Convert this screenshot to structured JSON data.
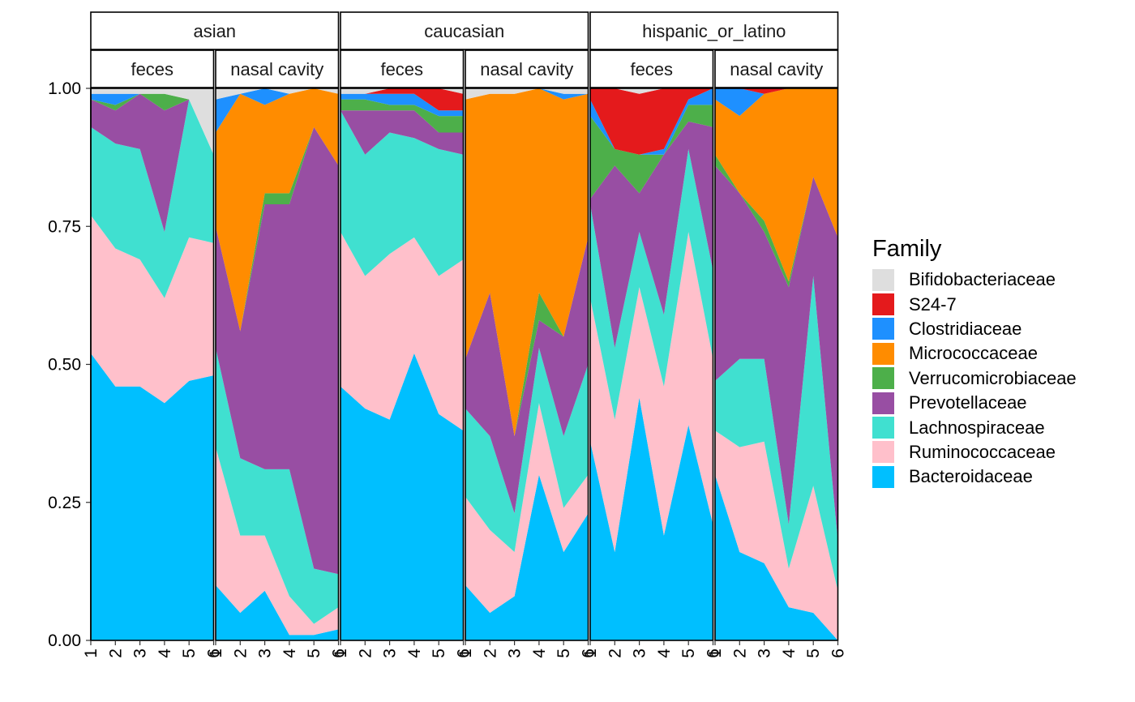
{
  "chart_data": {
    "type": "area",
    "subtype": "stacked-filled",
    "ylim": [
      0,
      1
    ],
    "y_ticks": [
      "0.00",
      "0.25",
      "0.50",
      "0.75",
      "1.00"
    ],
    "x_ticks": [
      "1",
      "2",
      "3",
      "4",
      "5",
      "6"
    ],
    "legend_title": "Family",
    "legend_position": "right",
    "families": [
      {
        "name": "Bifidobacteriaceae",
        "color": "#DEDEDE"
      },
      {
        "name": "S24-7",
        "color": "#E41A1C"
      },
      {
        "name": "Clostridiaceae",
        "color": "#1E90FF"
      },
      {
        "name": "Micrococcaceae",
        "color": "#FF8C00"
      },
      {
        "name": "Verrucomicrobiaceae",
        "color": "#4DAF4A"
      },
      {
        "name": "Prevotellaceae",
        "color": "#984EA3"
      },
      {
        "name": "Lachnospiraceae",
        "color": "#40E0D0"
      },
      {
        "name": "Ruminococcaceae",
        "color": "#FFC0CB"
      },
      {
        "name": "Bacteroidaceae",
        "color": "#00BFFF"
      }
    ],
    "stack_order_bottom_to_top": [
      "Bacteroidaceae",
      "Ruminococcaceae",
      "Lachnospiraceae",
      "Prevotellaceae",
      "Verrucomicrobiaceae",
      "Micrococcaceae",
      "Clostridiaceae",
      "S24-7",
      "Bifidobacteriaceae"
    ],
    "groups": [
      {
        "label": "asian",
        "panels": [
          {
            "label": "feces",
            "x": [
              1,
              2,
              3,
              4,
              5,
              6
            ],
            "Bacteroidaceae": [
              0.52,
              0.46,
              0.46,
              0.43,
              0.47,
              0.48
            ],
            "Ruminococcaceae": [
              0.25,
              0.25,
              0.23,
              0.19,
              0.26,
              0.24
            ],
            "Lachnospiraceae": [
              0.16,
              0.19,
              0.2,
              0.12,
              0.25,
              0.16
            ],
            "Prevotellaceae": [
              0.05,
              0.06,
              0.1,
              0.22,
              0.0,
              0.0
            ],
            "Verrucomicrobiaceae": [
              0.0,
              0.01,
              0.0,
              0.03,
              0.0,
              0.0
            ],
            "Micrococcaceae": [
              0.0,
              0.0,
              0.0,
              0.0,
              0.0,
              0.0
            ],
            "Clostridiaceae": [
              0.01,
              0.02,
              0.0,
              0.0,
              0.0,
              0.0
            ],
            "S24-7": [
              0.0,
              0.0,
              0.0,
              0.0,
              0.0,
              0.0
            ],
            "Bifidobacteriaceae": [
              0.01,
              0.01,
              0.01,
              0.01,
              0.02,
              0.12
            ]
          },
          {
            "label": "nasal cavity",
            "x": [
              1,
              2,
              3,
              4,
              5,
              6
            ],
            "Bacteroidaceae": [
              0.1,
              0.05,
              0.09,
              0.01,
              0.01,
              0.02
            ],
            "Ruminococcaceae": [
              0.25,
              0.14,
              0.1,
              0.07,
              0.02,
              0.04
            ],
            "Lachnospiraceae": [
              0.18,
              0.14,
              0.12,
              0.23,
              0.1,
              0.06
            ],
            "Prevotellaceae": [
              0.22,
              0.23,
              0.48,
              0.48,
              0.8,
              0.74
            ],
            "Verrucomicrobiaceae": [
              0.0,
              0.0,
              0.02,
              0.02,
              0.0,
              0.0
            ],
            "Micrococcaceae": [
              0.17,
              0.43,
              0.16,
              0.18,
              0.07,
              0.13
            ],
            "Clostridiaceae": [
              0.06,
              0.0,
              0.03,
              0.0,
              0.0,
              0.0
            ],
            "S24-7": [
              0.0,
              0.0,
              0.0,
              0.0,
              0.0,
              0.0
            ],
            "Bifidobacteriaceae": [
              0.02,
              0.01,
              0.0,
              0.01,
              0.0,
              0.01
            ]
          }
        ]
      },
      {
        "label": "caucasian",
        "panels": [
          {
            "label": "feces",
            "x": [
              1,
              2,
              3,
              4,
              5,
              6
            ],
            "Bacteroidaceae": [
              0.46,
              0.42,
              0.4,
              0.52,
              0.41,
              0.38
            ],
            "Ruminococcaceae": [
              0.28,
              0.24,
              0.3,
              0.21,
              0.25,
              0.31
            ],
            "Lachnospiraceae": [
              0.22,
              0.22,
              0.22,
              0.18,
              0.23,
              0.19
            ],
            "Prevotellaceae": [
              0.0,
              0.08,
              0.04,
              0.05,
              0.03,
              0.04
            ],
            "Verrucomicrobiaceae": [
              0.02,
              0.02,
              0.01,
              0.01,
              0.03,
              0.03
            ],
            "Micrococcaceae": [
              0.0,
              0.0,
              0.0,
              0.0,
              0.0,
              0.0
            ],
            "Clostridiaceae": [
              0.01,
              0.01,
              0.02,
              0.02,
              0.01,
              0.01
            ],
            "S24-7": [
              0.0,
              0.0,
              0.01,
              0.01,
              0.04,
              0.03
            ],
            "Bifidobacteriaceae": [
              0.01,
              0.01,
              0.0,
              0.0,
              0.0,
              0.01
            ]
          },
          {
            "label": "nasal cavity",
            "x": [
              1,
              2,
              3,
              4,
              5,
              6
            ],
            "Bacteroidaceae": [
              0.1,
              0.05,
              0.08,
              0.3,
              0.16,
              0.23
            ],
            "Ruminococcaceae": [
              0.16,
              0.15,
              0.08,
              0.13,
              0.08,
              0.07
            ],
            "Lachnospiraceae": [
              0.16,
              0.17,
              0.07,
              0.1,
              0.13,
              0.2
            ],
            "Prevotellaceae": [
              0.09,
              0.26,
              0.14,
              0.05,
              0.18,
              0.23
            ],
            "Verrucomicrobiaceae": [
              0.0,
              0.0,
              0.0,
              0.05,
              0.0,
              0.0
            ],
            "Micrococcaceae": [
              0.47,
              0.36,
              0.62,
              0.37,
              0.43,
              0.26
            ],
            "Clostridiaceae": [
              0.0,
              0.0,
              0.0,
              0.0,
              0.01,
              0.0
            ],
            "S24-7": [
              0.0,
              0.0,
              0.0,
              0.0,
              0.0,
              0.0
            ],
            "Bifidobacteriaceae": [
              0.02,
              0.01,
              0.01,
              0.0,
              0.01,
              0.01
            ]
          }
        ]
      },
      {
        "label": "hispanic_or_latino",
        "panels": [
          {
            "label": "feces",
            "x": [
              1,
              2,
              3,
              4,
              5,
              6
            ],
            "Bacteroidaceae": [
              0.36,
              0.16,
              0.44,
              0.19,
              0.39,
              0.21
            ],
            "Ruminococcaceae": [
              0.26,
              0.24,
              0.2,
              0.27,
              0.35,
              0.3
            ],
            "Lachnospiraceae": [
              0.17,
              0.13,
              0.1,
              0.13,
              0.15,
              0.16
            ],
            "Prevotellaceae": [
              0.01,
              0.33,
              0.07,
              0.29,
              0.05,
              0.26
            ],
            "Verrucomicrobiaceae": [
              0.15,
              0.03,
              0.07,
              0.0,
              0.03,
              0.04
            ],
            "Micrococcaceae": [
              0.0,
              0.0,
              0.0,
              0.0,
              0.0,
              0.0
            ],
            "Clostridiaceae": [
              0.03,
              0.0,
              0.0,
              0.01,
              0.01,
              0.03
            ],
            "S24-7": [
              0.02,
              0.11,
              0.11,
              0.11,
              0.02,
              0.0
            ],
            "Bifidobacteriaceae": [
              0.0,
              0.0,
              0.01,
              0.0,
              0.0,
              0.0
            ]
          },
          {
            "label": "nasal cavity",
            "x": [
              1,
              2,
              3,
              4,
              5,
              6
            ],
            "Bacteroidaceae": [
              0.3,
              0.16,
              0.14,
              0.06,
              0.05,
              0.0
            ],
            "Ruminococcaceae": [
              0.08,
              0.19,
              0.22,
              0.07,
              0.23,
              0.09
            ],
            "Lachnospiraceae": [
              0.09,
              0.16,
              0.15,
              0.08,
              0.38,
              0.09
            ],
            "Prevotellaceae": [
              0.39,
              0.3,
              0.23,
              0.43,
              0.18,
              0.55
            ],
            "Verrucomicrobiaceae": [
              0.02,
              0.0,
              0.02,
              0.01,
              0.0,
              0.0
            ],
            "Micrococcaceae": [
              0.1,
              0.14,
              0.23,
              0.35,
              0.16,
              0.27
            ],
            "Clostridiaceae": [
              0.02,
              0.05,
              0.0,
              0.0,
              0.0,
              0.0
            ],
            "S24-7": [
              0.0,
              0.0,
              0.01,
              0.0,
              0.0,
              0.0
            ],
            "Bifidobacteriaceae": [
              0.0,
              0.0,
              0.0,
              0.0,
              0.0,
              0.0
            ]
          }
        ]
      }
    ]
  }
}
